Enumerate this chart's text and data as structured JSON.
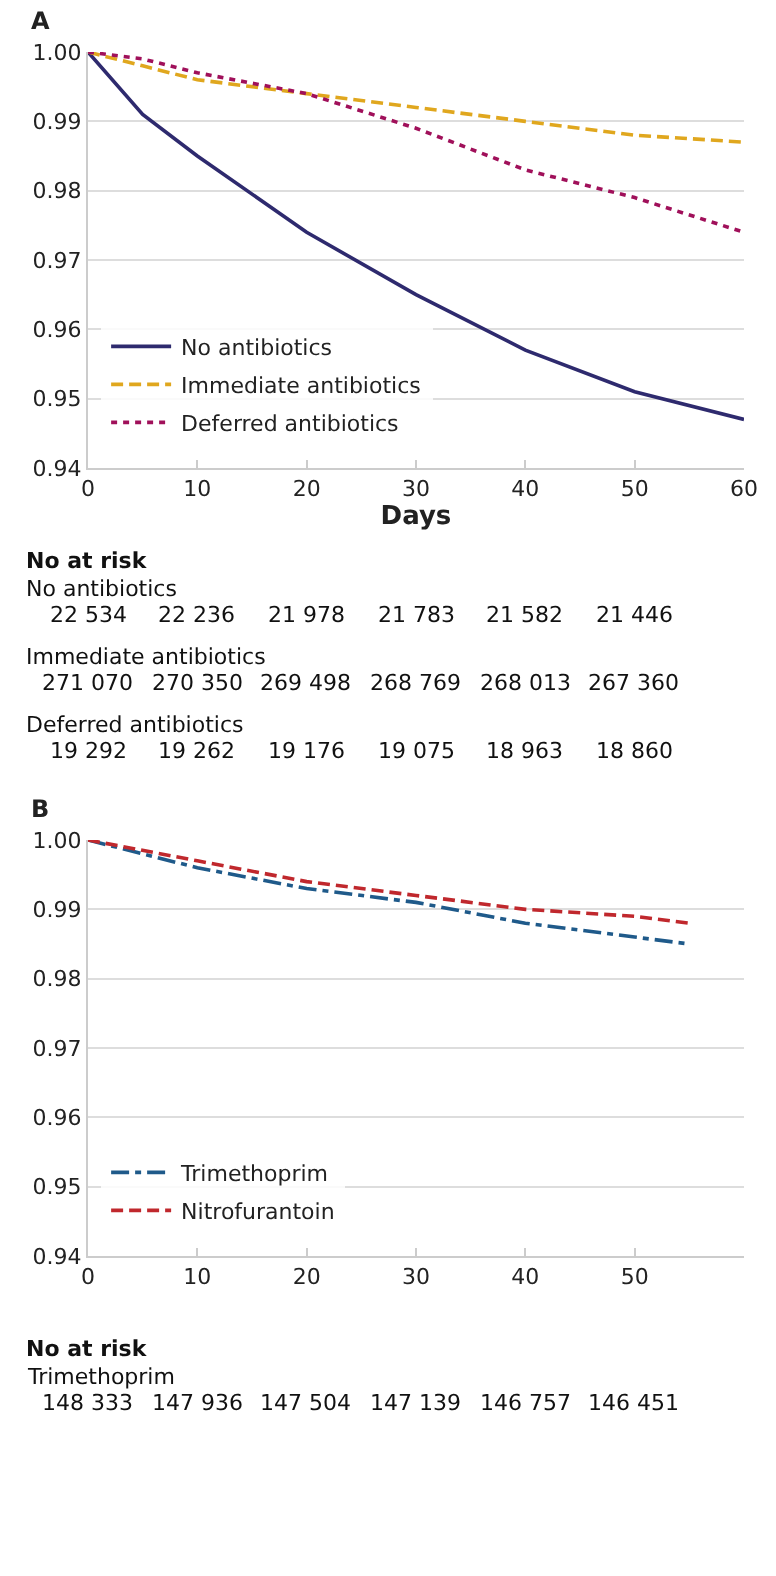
{
  "chart_data": [
    {
      "type": "line",
      "title": "A",
      "xlabel": "Days",
      "xlim": [
        0,
        60
      ],
      "xticks": [
        0,
        10,
        20,
        30,
        40,
        50,
        60
      ],
      "ylim": [
        0.94,
        1.0
      ],
      "yticks": [
        0.94,
        0.95,
        0.96,
        0.97,
        0.98,
        0.99,
        {
          "value": 1.0,
          "label": "1.00"
        }
      ],
      "grid": "y",
      "legend": "bottom left",
      "x": [
        0,
        5,
        10,
        20,
        30,
        40,
        50,
        60
      ],
      "series": [
        {
          "name": "No antibiotics",
          "color": "#2e2a6e",
          "line_style": "solid",
          "values": [
            1.0,
            0.991,
            0.985,
            0.974,
            0.965,
            0.957,
            0.951,
            0.947
          ]
        },
        {
          "name": "Immediate antibiotics",
          "color": "#e0a71e",
          "line_style": "dashed",
          "values": [
            1.0,
            0.998,
            0.996,
            0.994,
            0.992,
            0.99,
            0.988,
            0.987
          ]
        },
        {
          "name": "Deferred antibiotics",
          "color": "#a0105a",
          "line_style": "dotted",
          "values": [
            1.0,
            0.999,
            0.997,
            0.994,
            0.989,
            0.983,
            0.979,
            0.974
          ]
        }
      ],
      "annotations": [
        "No at risk",
        "No antibiotics",
        "22 534",
        "22 236",
        "21 978",
        "21 783",
        "21 582",
        "21 446",
        "Immediate antibiotics",
        "271 070",
        "270 350",
        "269 498",
        "268 769",
        "268 013",
        "267 360",
        "Deferred antibiotics",
        "19 292",
        "19 262",
        "19 176",
        "19 075",
        "18 963",
        "18 860"
      ]
    },
    {
      "type": "line",
      "title": "B",
      "xlim": [
        0,
        60
      ],
      "xticks": [
        0,
        10,
        20,
        30,
        40,
        50
      ],
      "ylim": [
        0.94,
        1.0
      ],
      "yticks": [
        0.94,
        0.95,
        0.96,
        0.97,
        0.98,
        0.99,
        {
          "value": 1.0,
          "label": "1.00"
        }
      ],
      "grid": "y",
      "legend": "bottom left",
      "x": [
        0,
        10,
        20,
        30,
        40,
        50,
        55
      ],
      "series": [
        {
          "name": "Trimethoprim",
          "color": "#1f5a8a",
          "line_style": "dashdot",
          "values": [
            1.0,
            0.996,
            0.993,
            0.991,
            0.988,
            0.986,
            0.985
          ]
        },
        {
          "name": "Nitrofurantoin",
          "color": "#c0282d",
          "line_style": "dashed",
          "values": [
            1.0,
            0.997,
            0.994,
            0.992,
            0.99,
            0.989,
            0.988
          ]
        }
      ],
      "annotations": [
        "No at risk",
        "Trimethoprim",
        "148 333",
        "147 936",
        "147 504",
        "147 139",
        "146 757",
        "146 451"
      ]
    }
  ]
}
